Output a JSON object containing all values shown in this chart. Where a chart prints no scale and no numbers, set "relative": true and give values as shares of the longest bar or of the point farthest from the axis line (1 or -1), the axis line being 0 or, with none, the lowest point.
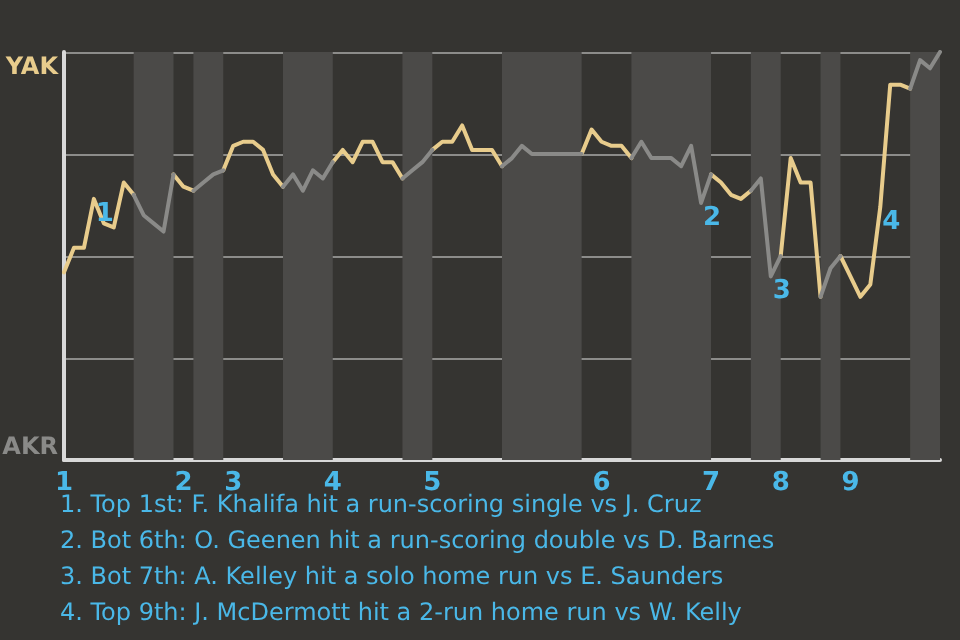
{
  "chart_data": {
    "type": "line",
    "relative": true,
    "categories": [
      "1",
      null,
      null,
      null,
      null,
      null,
      null,
      null,
      null,
      null,
      null,
      null,
      "2",
      null,
      null,
      null,
      null,
      "3",
      null,
      null,
      null,
      null,
      null,
      null,
      null,
      null,
      null,
      "4",
      null,
      null,
      null,
      null,
      null,
      null,
      null,
      null,
      null,
      "5",
      null,
      null,
      null,
      null,
      null,
      null,
      null,
      null,
      null,
      null,
      null,
      null,
      null,
      null,
      null,
      null,
      "6",
      null,
      null,
      null,
      null,
      null,
      null,
      null,
      null,
      null,
      null,
      "7",
      null,
      null,
      null,
      null,
      null,
      null,
      "8",
      null,
      null,
      null,
      null,
      null,
      null,
      "9",
      null,
      null,
      null,
      null,
      null,
      null,
      null,
      null,
      null
    ],
    "series": [
      {
        "color": "#e8cc8c",
        "values": [
          0.46,
          0.52,
          0.52,
          0.64,
          0.58,
          0.57,
          0.68,
          0.65,
          null,
          null,
          null,
          0.7,
          0.67,
          0.66,
          null,
          null,
          0.71,
          0.77,
          0.78,
          0.78,
          0.76,
          0.7,
          0.67,
          null,
          null,
          null,
          null,
          0.73,
          0.76,
          0.73,
          0.78,
          0.78,
          0.73,
          0.73,
          0.69,
          null,
          null,
          0.76,
          0.78,
          0.78,
          0.82,
          0.76,
          0.76,
          0.76,
          0.72,
          null,
          null,
          null,
          null,
          null,
          null,
          null,
          0.75,
          0.81,
          0.78,
          0.77,
          0.77,
          0.74,
          null,
          null,
          null,
          null,
          null,
          null,
          null,
          0.7,
          0.68,
          0.65,
          0.64,
          0.66,
          null,
          null,
          0.5,
          0.74,
          0.68,
          0.68,
          0.4,
          null,
          0.5,
          0.45,
          0.4,
          0.43,
          0.62,
          0.92,
          0.92,
          0.91,
          null,
          null,
          null
        ]
      },
      {
        "color": "#8a8a88",
        "values": [
          null,
          null,
          null,
          null,
          null,
          null,
          null,
          0.65,
          0.6,
          0.58,
          0.56,
          0.7,
          null,
          0.66,
          0.68,
          0.7,
          0.71,
          null,
          null,
          null,
          null,
          null,
          0.67,
          0.7,
          0.66,
          0.71,
          0.69,
          0.73,
          null,
          null,
          null,
          null,
          null,
          null,
          0.69,
          0.71,
          0.73,
          0.76,
          null,
          null,
          null,
          null,
          null,
          null,
          0.72,
          0.74,
          0.77,
          0.75,
          0.75,
          0.75,
          0.75,
          0.75,
          0.75,
          null,
          null,
          null,
          null,
          0.74,
          0.78,
          0.74,
          0.74,
          0.74,
          0.72,
          0.77,
          0.63,
          0.7,
          null,
          null,
          null,
          0.66,
          0.69,
          0.45,
          0.5,
          null,
          null,
          null,
          0.4,
          0.47,
          0.5,
          null,
          null,
          null,
          null,
          null,
          null,
          0.91,
          0.98,
          0.96,
          1.0
        ]
      }
    ],
    "grid": "y",
    "marker": "none",
    "line_style": "solid",
    "annotations": [
      "YAK",
      "AKR",
      {
        "text": "1",
        "y": 0.64
      },
      {
        "text": "2",
        "y": 0.63
      },
      {
        "text": "3",
        "y": 0.45
      },
      {
        "text": "4",
        "y": 0.62
      },
      "1. Top 1st: F. Khalifa hit a run-scoring single vs J. Cruz",
      "2. Bot 6th: O. Geenen hit a run-scoring double vs D. Barnes",
      "3. Bot 7th: A. Kelley hit a solo home run vs E. Saunders",
      "4. Top 9th: J. McDermott hit a 2-run home run vs W. Kelly"
    ]
  }
}
